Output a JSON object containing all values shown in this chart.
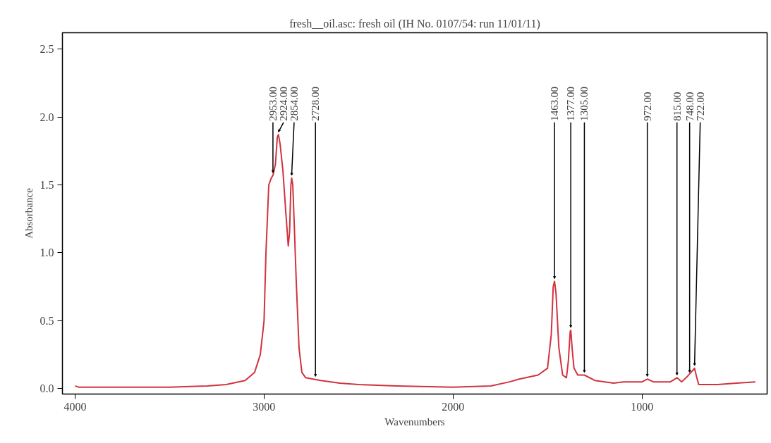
{
  "chart_data": {
    "type": "line",
    "title": "fresh__oil.asc: fresh oil (IH No. 0107/54: run 11/01/11)",
    "xlabel": "Wavenumbers",
    "ylabel": "Absorbance",
    "x": [
      4000,
      3980,
      3500,
      3300,
      3200,
      3100,
      3050,
      3020,
      3000,
      2990,
      2975,
      2962,
      2953,
      2940,
      2930,
      2924,
      2915,
      2900,
      2885,
      2872,
      2865,
      2858,
      2854,
      2848,
      2840,
      2830,
      2815,
      2800,
      2780,
      2740,
      2700,
      2600,
      2500,
      2300,
      2000,
      1800,
      1700,
      1650,
      1550,
      1500,
      1480,
      1470,
      1463,
      1455,
      1440,
      1420,
      1400,
      1390,
      1380,
      1377,
      1370,
      1360,
      1340,
      1305,
      1250,
      1150,
      1100,
      1000,
      972,
      940,
      850,
      815,
      790,
      760,
      740,
      722,
      710,
      700,
      600,
      500,
      400
    ],
    "series": [
      {
        "color": "#d0343f",
        "values": [
          0.02,
          0.01,
          0.01,
          0.02,
          0.03,
          0.06,
          0.12,
          0.25,
          0.5,
          1.0,
          1.5,
          1.55,
          1.57,
          1.65,
          1.85,
          1.87,
          1.8,
          1.6,
          1.3,
          1.05,
          1.15,
          1.5,
          1.55,
          1.5,
          1.2,
          0.8,
          0.3,
          0.12,
          0.08,
          0.07,
          0.06,
          0.04,
          0.03,
          0.02,
          0.01,
          0.02,
          0.05,
          0.07,
          0.1,
          0.15,
          0.4,
          0.75,
          0.79,
          0.7,
          0.3,
          0.1,
          0.08,
          0.2,
          0.42,
          0.43,
          0.3,
          0.15,
          0.1,
          0.1,
          0.06,
          0.04,
          0.05,
          0.05,
          0.07,
          0.05,
          0.05,
          0.08,
          0.05,
          0.09,
          0.12,
          0.15,
          0.08,
          0.03,
          0.03,
          0.04,
          0.05
        ]
      }
    ],
    "annotations": [
      {
        "text": "2953.00",
        "x": 2953,
        "y": 1.57
      },
      {
        "text": "2924.00",
        "x": 2924,
        "y": 1.87
      },
      {
        "text": "2854.00",
        "x": 2854,
        "y": 1.55
      },
      {
        "text": "2728.00",
        "x": 2728,
        "y": 0.07
      },
      {
        "text": "1463.00",
        "x": 1463,
        "y": 0.79
      },
      {
        "text": "1377.00",
        "x": 1377,
        "y": 0.43
      },
      {
        "text": "1305.00",
        "x": 1305,
        "y": 0.1
      },
      {
        "text": "972.00",
        "x": 972,
        "y": 0.07
      },
      {
        "text": "815.00",
        "x": 815,
        "y": 0.08
      },
      {
        "text": "748.00",
        "x": 748,
        "y": 0.1
      },
      {
        "text": "722.00",
        "x": 722,
        "y": 0.15
      }
    ],
    "xlim": [
      4067,
      338
    ],
    "ylim": [
      -0.04,
      2.62
    ],
    "xticks": [
      4000,
      3000,
      2000,
      1000
    ],
    "yticks": [
      {
        "value": 0,
        "label": "0.0"
      },
      {
        "value": 0.5,
        "label": "0.5"
      },
      {
        "value": 1,
        "label": "1.0"
      },
      {
        "value": 1.5,
        "label": "1.5"
      },
      {
        "value": 2,
        "label": "2.0"
      },
      {
        "value": 2.5,
        "label": "2.5"
      }
    ],
    "grid": false,
    "marker": "none",
    "line_style": "solid"
  }
}
